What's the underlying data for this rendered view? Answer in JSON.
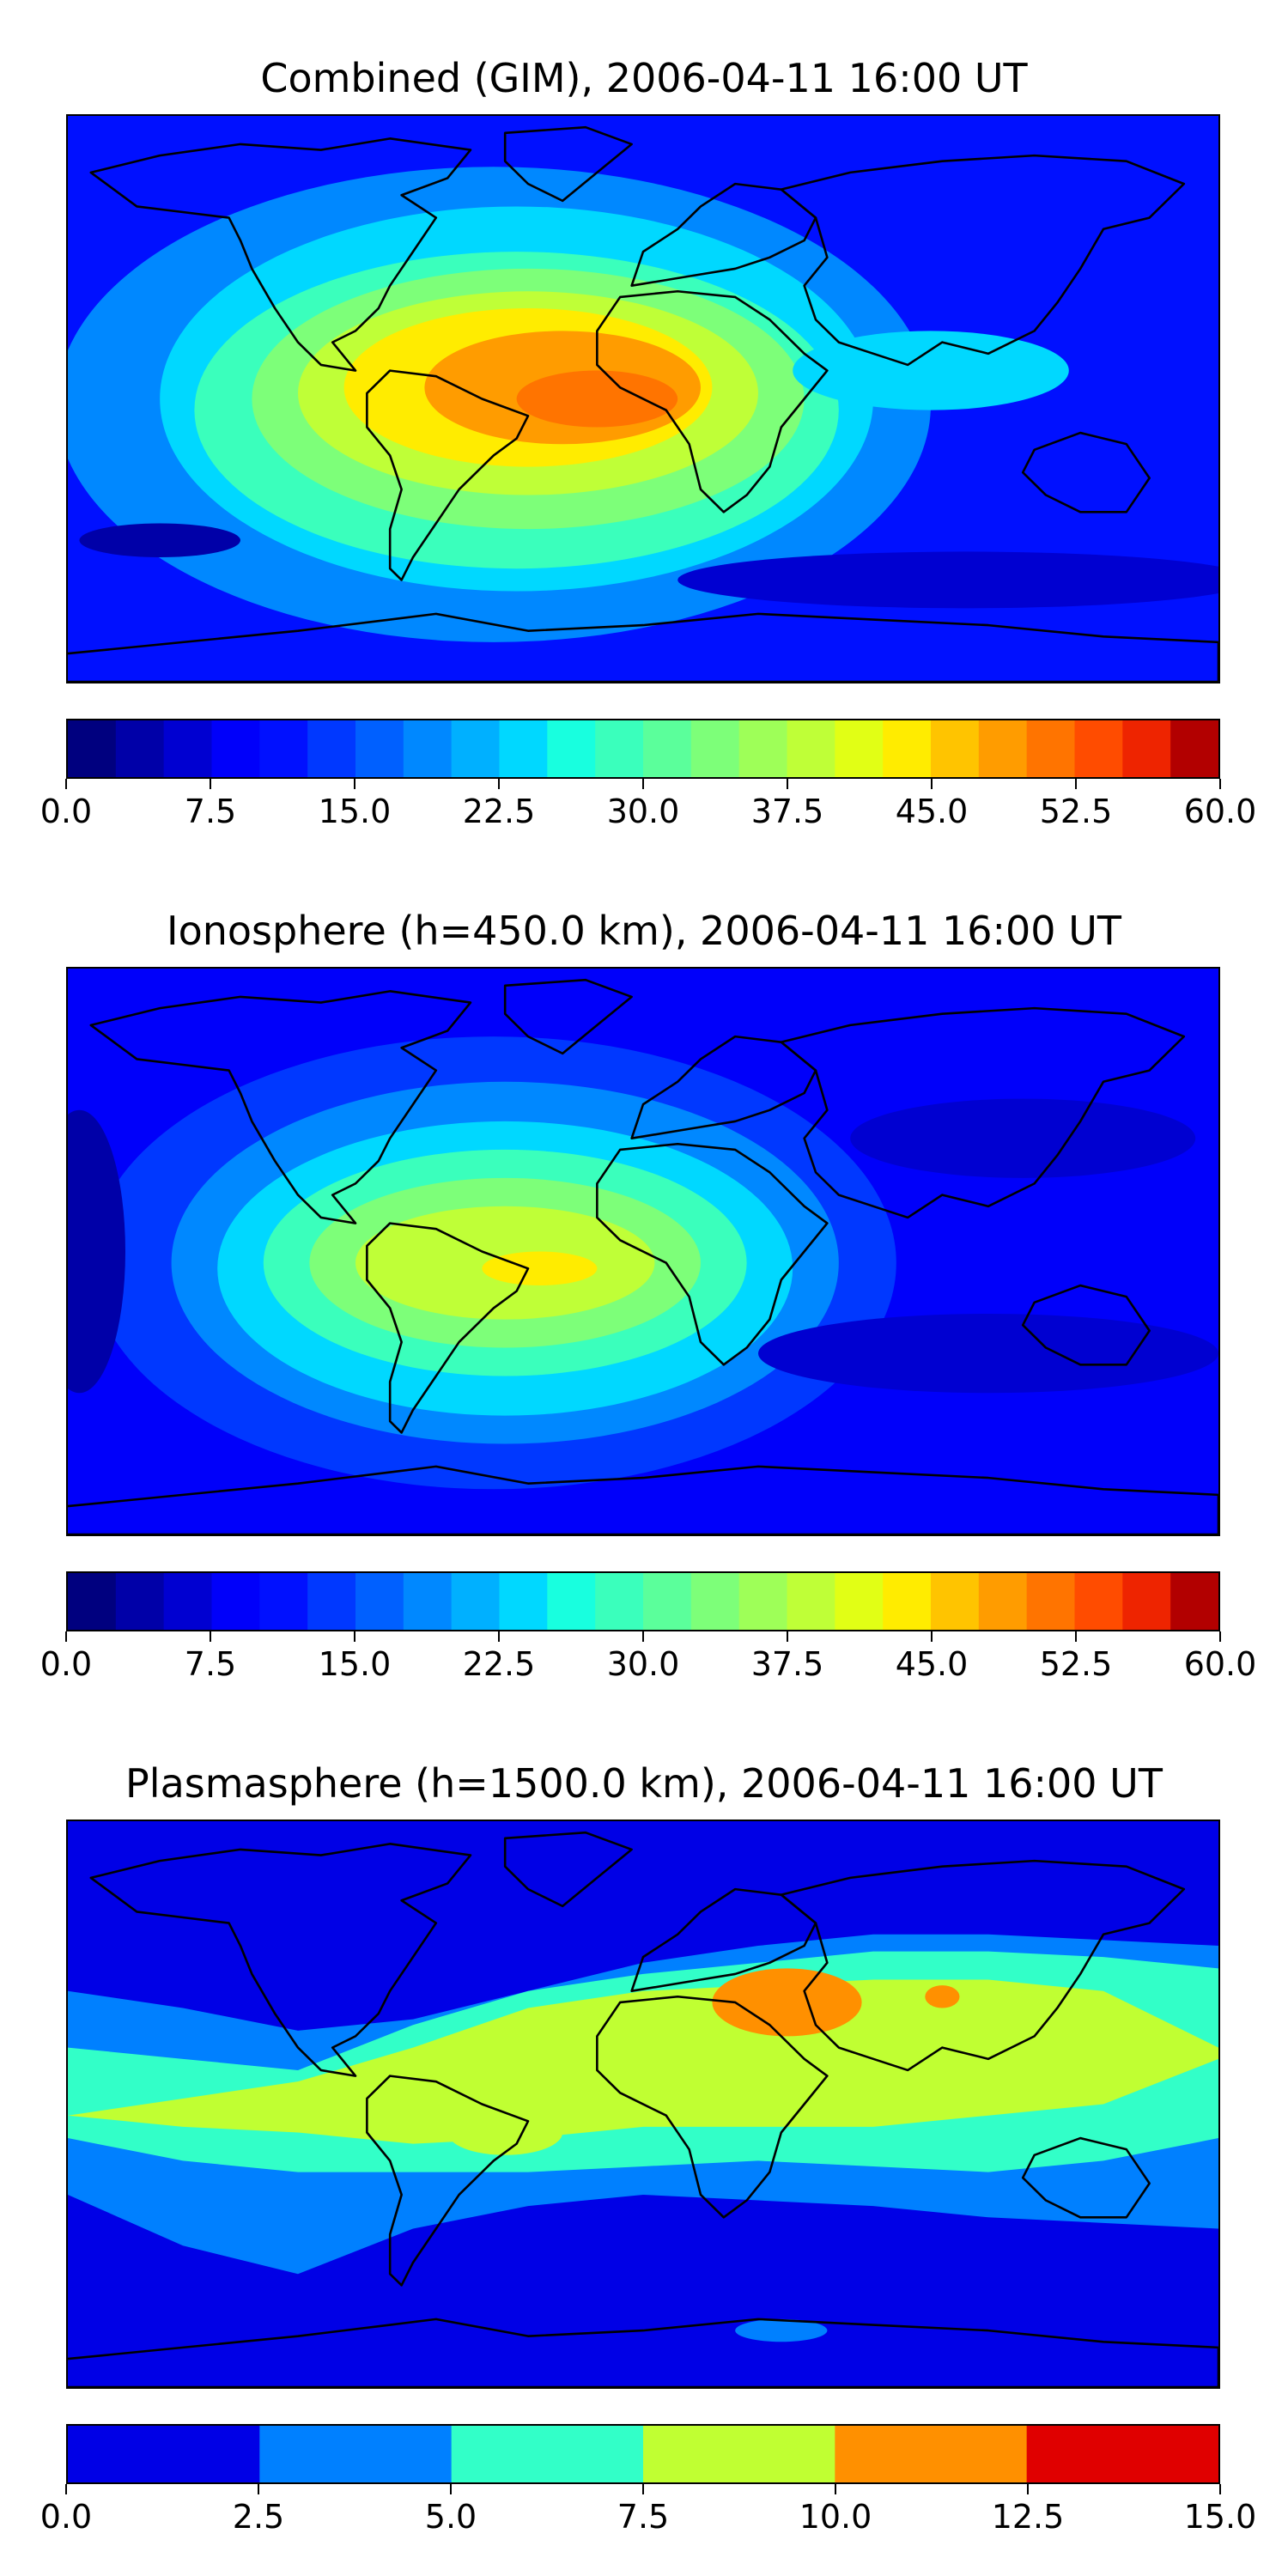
{
  "chart_data": [
    {
      "type": "heatmap",
      "title": "Combined (GIM), 2006-04-11 16:00 UT",
      "colormap": "jet",
      "colorbar": {
        "min": 0,
        "max": 60,
        "levels": 24,
        "tick_labels": [
          "0.0",
          "7.5",
          "15.0",
          "22.5",
          "30.0",
          "37.5",
          "45.0",
          "52.5",
          "60.0"
        ],
        "tick_values": [
          0,
          7.5,
          15,
          22.5,
          30,
          37.5,
          45,
          52.5,
          60
        ],
        "colors": [
          "#00007f",
          "#0000a8",
          "#0000d1",
          "#0000fa",
          "#0010ff",
          "#0038ff",
          "#0060ff",
          "#0088ff",
          "#00b0ff",
          "#00d8ff",
          "#18ffdf",
          "#3affbc",
          "#5bff9b",
          "#7dff79",
          "#9eff58",
          "#bfff37",
          "#e1ff15",
          "#ffec00",
          "#ffc400",
          "#ff9c00",
          "#ff7400",
          "#ff4c00",
          "#ee2400",
          "#b20000"
        ]
      },
      "features": {
        "background": 4,
        "blobs": [
          {
            "level": 7,
            "cx": 0.37,
            "cy": 0.51,
            "rx": 0.38,
            "ry": 0.42
          },
          {
            "level": 9,
            "cx": 0.39,
            "cy": 0.5,
            "rx": 0.31,
            "ry": 0.34
          },
          {
            "level": 11,
            "cx": 0.39,
            "cy": 0.52,
            "rx": 0.28,
            "ry": 0.28
          },
          {
            "level": 13,
            "cx": 0.4,
            "cy": 0.5,
            "rx": 0.24,
            "ry": 0.23
          },
          {
            "level": 15,
            "cx": 0.4,
            "cy": 0.49,
            "rx": 0.2,
            "ry": 0.18
          },
          {
            "level": 17,
            "cx": 0.4,
            "cy": 0.48,
            "rx": 0.16,
            "ry": 0.14
          },
          {
            "level": 19,
            "cx": 0.43,
            "cy": 0.48,
            "rx": 0.12,
            "ry": 0.1
          },
          {
            "level": 20,
            "cx": 0.46,
            "cy": 0.5,
            "rx": 0.07,
            "ry": 0.05
          },
          {
            "level": 9,
            "cx": 0.75,
            "cy": 0.45,
            "rx": 0.12,
            "ry": 0.07
          },
          {
            "level": 1,
            "cx": 0.08,
            "cy": 0.75,
            "rx": 0.07,
            "ry": 0.03
          },
          {
            "level": 2,
            "cx": 0.78,
            "cy": 0.82,
            "rx": 0.25,
            "ry": 0.05
          }
        ]
      }
    },
    {
      "type": "heatmap",
      "title": "Ionosphere  (h=450.0 km), 2006-04-11 16:00 UT",
      "colormap": "jet",
      "colorbar": {
        "min": 0,
        "max": 60,
        "levels": 24,
        "tick_labels": [
          "0.0",
          "7.5",
          "15.0",
          "22.5",
          "30.0",
          "37.5",
          "45.0",
          "52.5",
          "60.0"
        ],
        "tick_values": [
          0,
          7.5,
          15,
          22.5,
          30,
          37.5,
          45,
          52.5,
          60
        ],
        "colors": [
          "#00007f",
          "#0000a8",
          "#0000d1",
          "#0000fa",
          "#0010ff",
          "#0038ff",
          "#0060ff",
          "#0088ff",
          "#00b0ff",
          "#00d8ff",
          "#18ffdf",
          "#3affbc",
          "#5bff9b",
          "#7dff79",
          "#9eff58",
          "#bfff37",
          "#e1ff15",
          "#ffec00",
          "#ffc400",
          "#ff9c00",
          "#ff7400",
          "#ff4c00",
          "#ee2400",
          "#b20000"
        ]
      },
      "features": {
        "background": 3,
        "blobs": [
          {
            "level": 5,
            "cx": 0.37,
            "cy": 0.52,
            "rx": 0.35,
            "ry": 0.4
          },
          {
            "level": 7,
            "cx": 0.38,
            "cy": 0.52,
            "rx": 0.29,
            "ry": 0.32
          },
          {
            "level": 9,
            "cx": 0.38,
            "cy": 0.53,
            "rx": 0.25,
            "ry": 0.26
          },
          {
            "level": 11,
            "cx": 0.38,
            "cy": 0.52,
            "rx": 0.21,
            "ry": 0.2
          },
          {
            "level": 13,
            "cx": 0.38,
            "cy": 0.52,
            "rx": 0.17,
            "ry": 0.15
          },
          {
            "level": 15,
            "cx": 0.38,
            "cy": 0.52,
            "rx": 0.13,
            "ry": 0.1
          },
          {
            "level": 17,
            "cx": 0.41,
            "cy": 0.53,
            "rx": 0.05,
            "ry": 0.03
          },
          {
            "level": 2,
            "cx": 0.83,
            "cy": 0.3,
            "rx": 0.15,
            "ry": 0.07
          },
          {
            "level": 2,
            "cx": 0.8,
            "cy": 0.68,
            "rx": 0.2,
            "ry": 0.07
          },
          {
            "level": 1,
            "cx": 0.01,
            "cy": 0.5,
            "rx": 0.04,
            "ry": 0.25
          }
        ]
      }
    },
    {
      "type": "heatmap",
      "title": "Plasmasphere (h=1500.0 km), 2006-04-11 16:00 UT",
      "colormap": "jet",
      "colorbar": {
        "min": 0,
        "max": 15,
        "levels": 6,
        "tick_labels": [
          "0.0",
          "2.5",
          "5.0",
          "7.5",
          "10.0",
          "12.5",
          "15.0"
        ],
        "tick_values": [
          0,
          2.5,
          5,
          7.5,
          10,
          12.5,
          15
        ],
        "colors": [
          "#0000e6",
          "#0080ff",
          "#32ffc8",
          "#c0ff32",
          "#ff9000",
          "#e00000"
        ]
      },
      "features": {
        "background": 0,
        "bands": [
          {
            "level": 1,
            "top": [
              0.3,
              0.33,
              0.37,
              0.35,
              0.3,
              0.25,
              0.22,
              0.2,
              0.2,
              0.21,
              0.22
            ],
            "bottom": [
              0.66,
              0.75,
              0.8,
              0.72,
              0.68,
              0.66,
              0.67,
              0.68,
              0.7,
              0.71,
              0.72
            ]
          },
          {
            "level": 2,
            "top": [
              0.4,
              0.42,
              0.44,
              0.36,
              0.3,
              0.27,
              0.25,
              0.23,
              0.23,
              0.24,
              0.26
            ],
            "bottom": [
              0.56,
              0.6,
              0.62,
              0.62,
              0.62,
              0.61,
              0.6,
              0.61,
              0.62,
              0.6,
              0.56
            ]
          },
          {
            "level": 3,
            "top": [
              0.52,
              0.49,
              0.46,
              0.4,
              0.33,
              0.3,
              0.29,
              0.28,
              0.28,
              0.3,
              0.4
            ],
            "bottom": [
              0.52,
              0.54,
              0.55,
              0.57,
              0.56,
              0.54,
              0.54,
              0.54,
              0.52,
              0.5,
              0.42
            ]
          }
        ],
        "blobs": [
          {
            "level": 3,
            "cx": 0.38,
            "cy": 0.55,
            "rx": 0.05,
            "ry": 0.04
          },
          {
            "level": 4,
            "cx": 0.625,
            "cy": 0.32,
            "rx": 0.065,
            "ry": 0.06
          },
          {
            "level": 4,
            "cx": 0.76,
            "cy": 0.31,
            "rx": 0.015,
            "ry": 0.02
          },
          {
            "level": 1,
            "cx": 0.08,
            "cy": 0.37,
            "rx": 0.03,
            "ry": 0.02
          },
          {
            "level": 1,
            "cx": 0.62,
            "cy": 0.9,
            "rx": 0.04,
            "ry": 0.02
          }
        ]
      }
    }
  ]
}
